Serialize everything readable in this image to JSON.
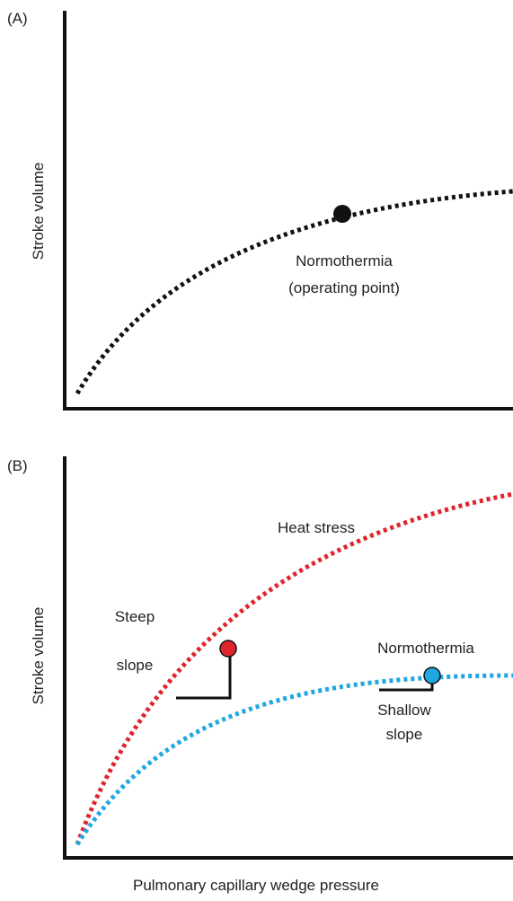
{
  "panels": [
    {
      "label": "(A)",
      "y_axis_label": "Stroke volume",
      "annotations": [
        "Normothermia",
        "(operating point)"
      ]
    },
    {
      "label": "(B)",
      "y_axis_label": "Stroke volume",
      "annotations": [
        "Heat stress",
        "Steep",
        "slope",
        "Normothermia",
        "Shallow",
        "slope"
      ]
    }
  ],
  "x_axis_label": "Pulmonary capillary wedge pressure"
}
